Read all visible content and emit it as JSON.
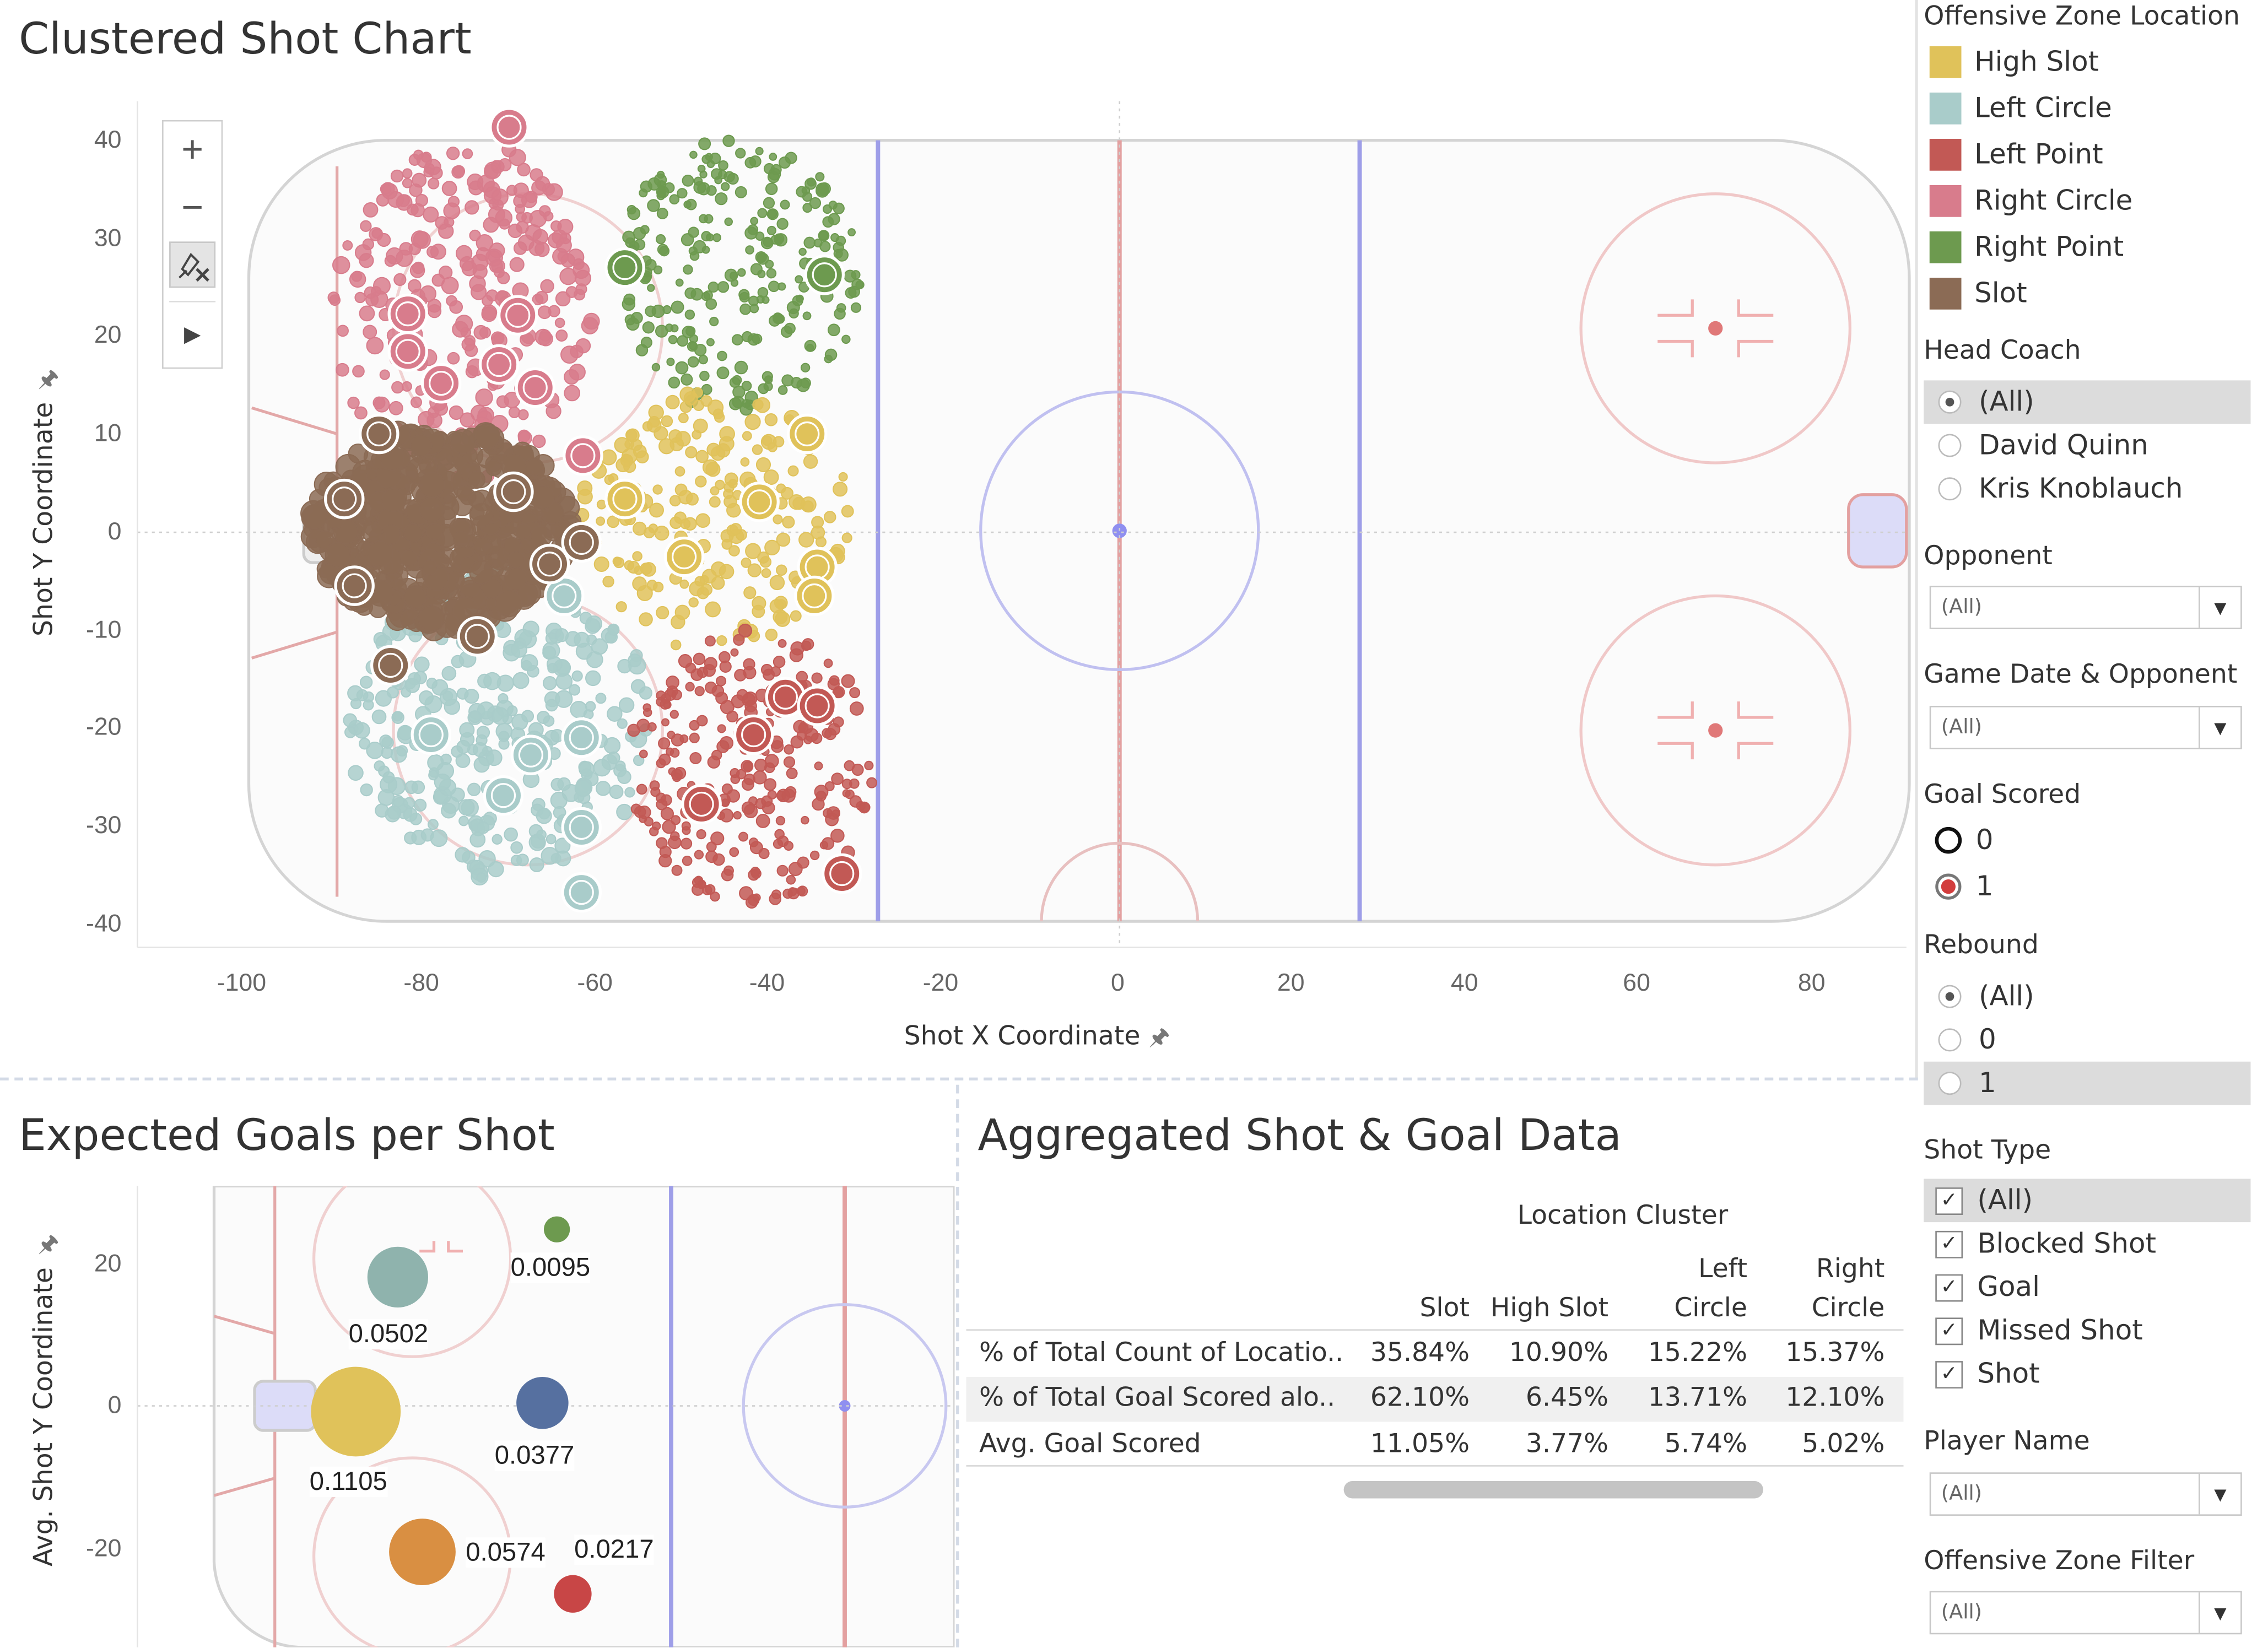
{
  "shot_chart": {
    "title": "Clustered Shot Chart",
    "x_axis_label": "Shot X Coordinate",
    "y_axis_label": "Shot Y Coordinate",
    "x_ticks": [
      "-100",
      "-80",
      "-60",
      "-40",
      "-20",
      "0",
      "20",
      "40",
      "60",
      "80"
    ],
    "y_ticks": [
      "40",
      "30",
      "20",
      "10",
      "0",
      "-10",
      "-20",
      "-30",
      "-40"
    ],
    "toolbar": {
      "zoom_in": "+",
      "zoom_out": "−"
    }
  },
  "expected_goals": {
    "title": "Expected Goals per Shot",
    "y_axis_label": "Avg. Shot Y Coordinate",
    "y_ticks": [
      "20",
      "0",
      "-20"
    ],
    "labels": [
      "0.0095",
      "0.0502",
      "0.1105",
      "0.0377",
      "0.0574",
      "0.0217"
    ]
  },
  "aggregated": {
    "title": "Aggregated Shot & Goal Data",
    "group_header": "Location Cluster",
    "columns": [
      {
        "line1": "",
        "line2": "Slot"
      },
      {
        "line1": "",
        "line2": "High Slot"
      },
      {
        "line1": "Left",
        "line2": "Circle"
      },
      {
        "line1": "Right",
        "line2": "Circle"
      }
    ],
    "rows": [
      {
        "label": "% of Total Count of Locatio..",
        "values": [
          "35.84%",
          "10.90%",
          "15.22%",
          "15.37%"
        ]
      },
      {
        "label": "% of Total Goal Scored alo..",
        "values": [
          "62.10%",
          "6.45%",
          "13.71%",
          "12.10%"
        ]
      },
      {
        "label": "Avg. Goal Scored",
        "values": [
          "11.05%",
          "3.77%",
          "5.74%",
          "5.02%"
        ]
      }
    ]
  },
  "legend": {
    "title": "Offensive Zone Location",
    "items": [
      {
        "label": "High Slot",
        "color": "#e0c25a"
      },
      {
        "label": "Left Circle",
        "color": "#a9ccca"
      },
      {
        "label": "Left Point",
        "color": "#c25955"
      },
      {
        "label": "Right Circle",
        "color": "#d87c8c"
      },
      {
        "label": "Right Point",
        "color": "#6d9a4f"
      },
      {
        "label": "Slot",
        "color": "#8b6b55"
      }
    ]
  },
  "filters": {
    "head_coach": {
      "title": "Head Coach",
      "options": [
        "(All)",
        "David Quinn",
        "Kris Knoblauch"
      ],
      "selected": "(All)"
    },
    "opponent": {
      "title": "Opponent",
      "value": "(All)"
    },
    "game_date": {
      "title": "Game Date & Opponent",
      "value": "(All)"
    },
    "goal_scored": {
      "title": "Goal Scored",
      "options": [
        "0",
        "1"
      ]
    },
    "rebound": {
      "title": "Rebound",
      "options": [
        "(All)",
        "0",
        "1"
      ],
      "selected": "(All)"
    },
    "shot_type": {
      "title": "Shot Type",
      "options": [
        "(All)",
        "Blocked Shot",
        "Goal",
        "Missed Shot",
        "Shot"
      ]
    },
    "player_name": {
      "title": "Player Name",
      "value": "(All)"
    },
    "offensive_zone": {
      "title": "Offensive Zone Filter",
      "value": "(All)"
    }
  }
}
